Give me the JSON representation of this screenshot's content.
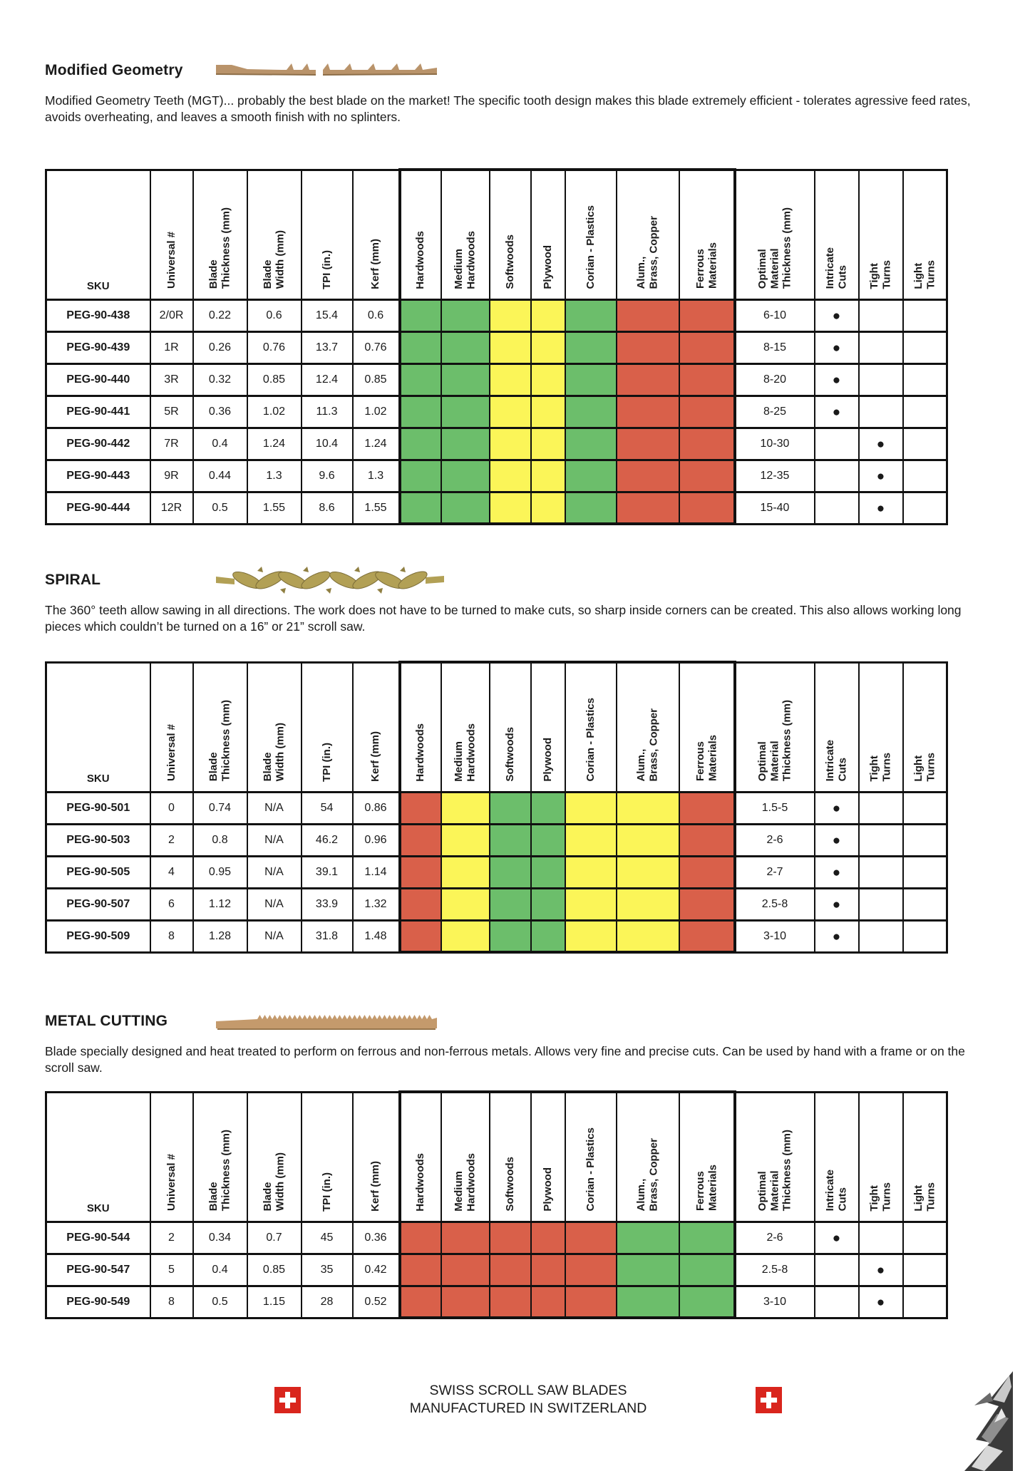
{
  "colors": {
    "green": "#6cbe6b",
    "yellow": "#fbf558",
    "red": "#d9604a",
    "swiss_red": "#d9251d",
    "blade_tan": "#b9936a",
    "blade_gold": "#b2a055"
  },
  "table_headers": {
    "sku": "SKU",
    "numeric": [
      "Universal #",
      "Blade\nThickness (mm)",
      "Blade\nWidth (mm)",
      "TPI (in.)",
      "Kerf (mm)"
    ],
    "materials": [
      "Hardwoods",
      "Medium\nHardwoods",
      "Softwoods",
      "Plywood",
      "Corian - Plastics",
      "Alum.,\nBrass, Copper",
      "Ferrous\nMaterials"
    ],
    "right": [
      "Optimal\nMaterial\nThickness (mm)",
      "Intricate\nCuts",
      "Tight\nTurns",
      "Light\nTurns"
    ]
  },
  "sections": [
    {
      "id": "modified-geometry",
      "title": "Modified Geometry",
      "intro": "Modified Geometry Teeth (MGT)... probably the best blade on the market! The specific tooth design makes this blade extremely efficient - tolerates agressive feed rates, avoids overheating, and leaves a smooth finish with no splinters.",
      "material_colors": [
        "green",
        "green",
        "yellow",
        "yellow",
        "green",
        "red",
        "red"
      ],
      "rows": [
        {
          "sku": "PEG-90-438",
          "universal": "2/0R",
          "thickness": "0.22",
          "width": "0.6",
          "tpi": "15.4",
          "kerf": "0.6",
          "optimal": "6-10",
          "dot": "intricate"
        },
        {
          "sku": "PEG-90-439",
          "universal": "1R",
          "thickness": "0.26",
          "width": "0.76",
          "tpi": "13.7",
          "kerf": "0.76",
          "optimal": "8-15",
          "dot": "intricate"
        },
        {
          "sku": "PEG-90-440",
          "universal": "3R",
          "thickness": "0.32",
          "width": "0.85",
          "tpi": "12.4",
          "kerf": "0.85",
          "optimal": "8-20",
          "dot": "intricate"
        },
        {
          "sku": "PEG-90-441",
          "universal": "5R",
          "thickness": "0.36",
          "width": "1.02",
          "tpi": "11.3",
          "kerf": "1.02",
          "optimal": "8-25",
          "dot": "intricate"
        },
        {
          "sku": "PEG-90-442",
          "universal": "7R",
          "thickness": "0.4",
          "width": "1.24",
          "tpi": "10.4",
          "kerf": "1.24",
          "optimal": "10-30",
          "dot": "tight"
        },
        {
          "sku": "PEG-90-443",
          "universal": "9R",
          "thickness": "0.44",
          "width": "1.3",
          "tpi": "9.6",
          "kerf": "1.3",
          "optimal": "12-35",
          "dot": "tight"
        },
        {
          "sku": "PEG-90-444",
          "universal": "12R",
          "thickness": "0.5",
          "width": "1.55",
          "tpi": "8.6",
          "kerf": "1.55",
          "optimal": "15-40",
          "dot": "tight"
        }
      ]
    },
    {
      "id": "spiral",
      "title": "SPIRAL",
      "intro": "The 360° teeth allow sawing in all directions. The work does not have to be turned to make cuts, so sharp inside corners can be created. This also allows working long pieces which couldn’t be turned on a 16” or 21” scroll saw.",
      "material_colors": [
        "red",
        "yellow",
        "green",
        "green",
        "yellow",
        "yellow",
        "red"
      ],
      "rows": [
        {
          "sku": "PEG-90-501",
          "universal": "0",
          "thickness": "0.74",
          "width": "N/A",
          "tpi": "54",
          "kerf": "0.86",
          "optimal": "1.5-5",
          "dot": "intricate"
        },
        {
          "sku": "PEG-90-503",
          "universal": "2",
          "thickness": "0.8",
          "width": "N/A",
          "tpi": "46.2",
          "kerf": "0.96",
          "optimal": "2-6",
          "dot": "intricate"
        },
        {
          "sku": "PEG-90-505",
          "universal": "4",
          "thickness": "0.95",
          "width": "N/A",
          "tpi": "39.1",
          "kerf": "1.14",
          "optimal": "2-7",
          "dot": "intricate"
        },
        {
          "sku": "PEG-90-507",
          "universal": "6",
          "thickness": "1.12",
          "width": "N/A",
          "tpi": "33.9",
          "kerf": "1.32",
          "optimal": "2.5-8",
          "dot": "intricate"
        },
        {
          "sku": "PEG-90-509",
          "universal": "8",
          "thickness": "1.28",
          "width": "N/A",
          "tpi": "31.8",
          "kerf": "1.48",
          "optimal": "3-10",
          "dot": "intricate"
        }
      ]
    },
    {
      "id": "metal-cutting",
      "title": "METAL CUTTING",
      "intro": "Blade specially designed and heat treated to perform on ferrous and non-ferrous metals. Allows very fine and precise cuts. Can be used by hand with a frame or on the scroll saw.",
      "material_colors": [
        "red",
        "red",
        "red",
        "red",
        "red",
        "green",
        "green"
      ],
      "rows": [
        {
          "sku": "PEG-90-544",
          "universal": "2",
          "thickness": "0.34",
          "width": "0.7",
          "tpi": "45",
          "kerf": "0.36",
          "optimal": "2-6",
          "dot": "intricate"
        },
        {
          "sku": "PEG-90-547",
          "universal": "5",
          "thickness": "0.4",
          "width": "0.85",
          "tpi": "35",
          "kerf": "0.42",
          "optimal": "2.5-8",
          "dot": "tight"
        },
        {
          "sku": "PEG-90-549",
          "universal": "8",
          "thickness": "0.5",
          "width": "1.15",
          "tpi": "28",
          "kerf": "0.52",
          "optimal": "3-10",
          "dot": "tight"
        }
      ]
    }
  ],
  "footer": {
    "line1": "SWISS SCROLL SAW BLADES",
    "line2": "MANUFACTURED IN SWITZERLAND"
  }
}
